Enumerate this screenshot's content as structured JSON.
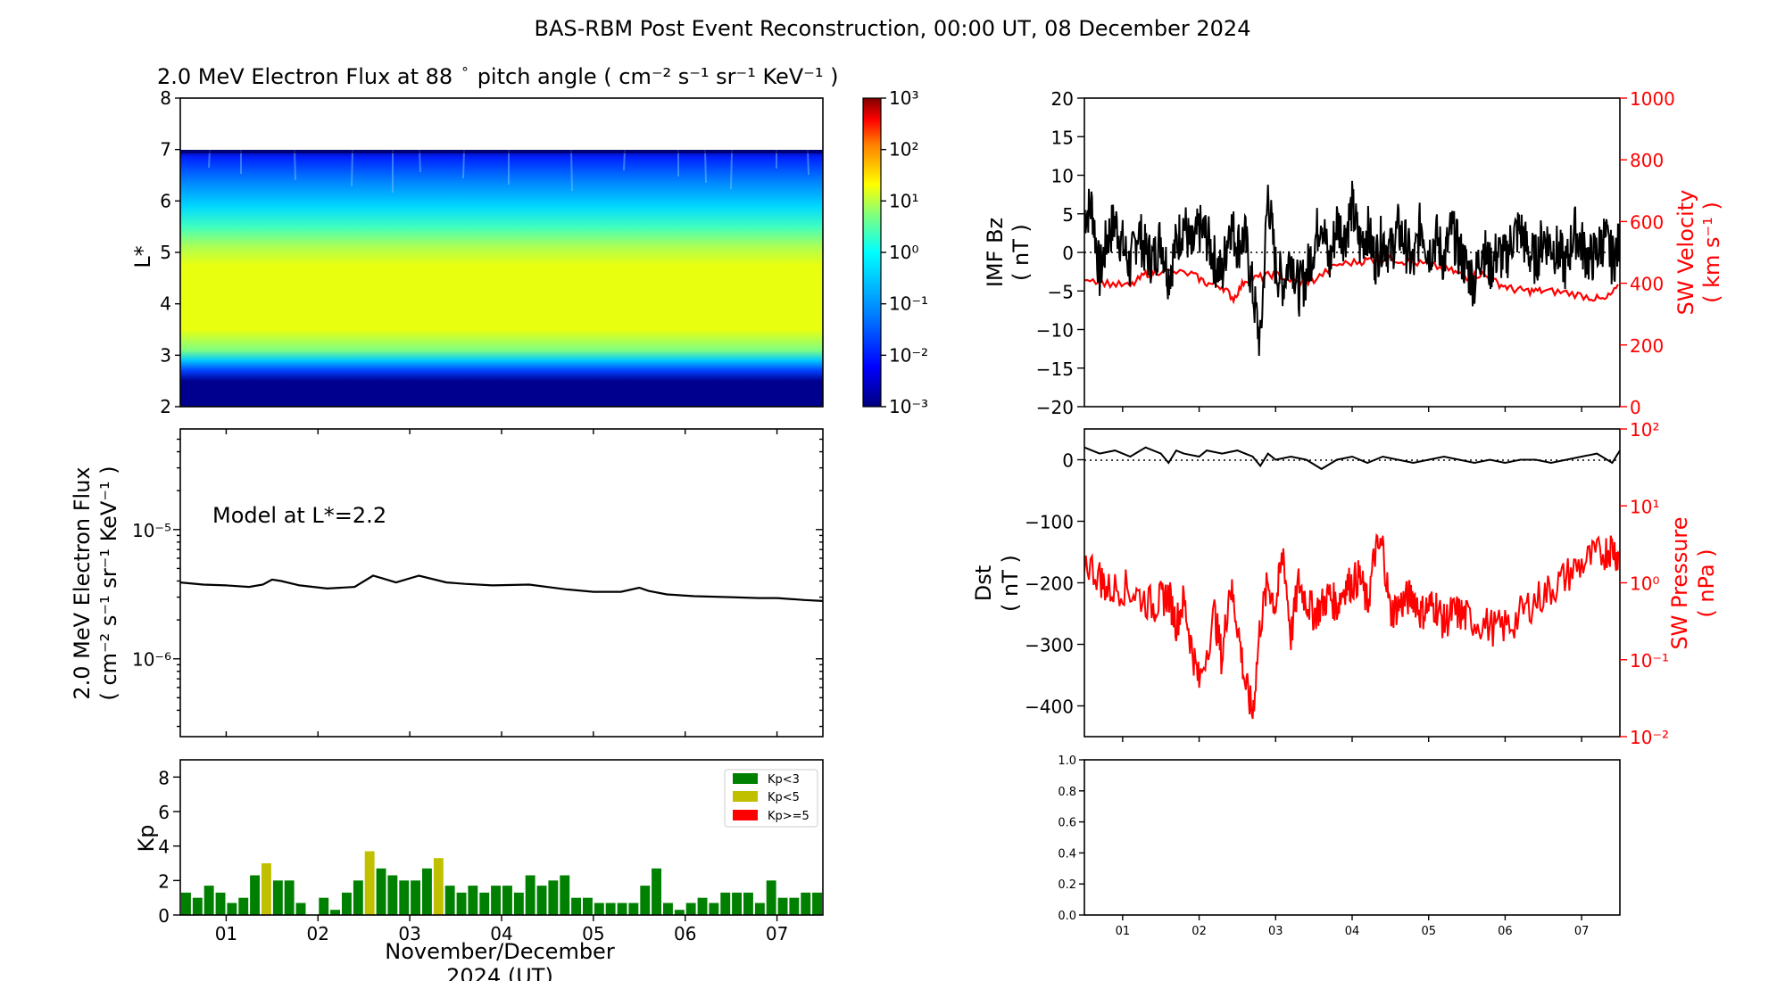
{
  "figure_title": "BAS-RBM Post Event Reconstruction, 00:00 UT, 08 December 2024",
  "colors": {
    "flux_line": "#000000",
    "sw_axis": "#ff0000",
    "kp_low": "#008000",
    "kp_mid": "#c0c000",
    "kp_high": "#ff0000"
  },
  "chart_data": [
    {
      "id": "flux_map",
      "type": "heatmap",
      "title": "2.0 MeV Electron Flux at 88",
      "title_deg": "°",
      "title_units": "pitch angle ( cm⁻² s⁻¹ sr⁻¹ KeV⁻¹ )",
      "ylabel": "L*",
      "ylim": [
        2,
        8
      ],
      "yticks": [
        "2",
        "3",
        "4",
        "5",
        "6",
        "7",
        "8"
      ],
      "note": "Flux peaks (~10^0.5) between L*≈3.5 and 5, drops sharply below L*≈3.1 and above L*=7 no data",
      "colorbar": {
        "scale": "log",
        "range": [
          0.001,
          1000
        ],
        "tick_labels": [
          "10⁻³",
          "10⁻²",
          "10⁻¹",
          "10⁰",
          "10¹",
          "10²",
          "10³"
        ]
      }
    },
    {
      "id": "flux_line",
      "type": "line",
      "annotation": "Model at L*=2.2",
      "ylabel_1": "2.0 MeV Electron Flux",
      "ylabel_2": "( cm⁻² s⁻¹ sr⁻¹ KeV⁻¹ )",
      "yscale": "log",
      "ylim": [
        2.5e-07,
        6e-05
      ],
      "ytick_labels": [
        "10⁻⁵",
        "10⁻⁶"
      ],
      "x_days": [
        0,
        0.25,
        0.5,
        0.75,
        0.9,
        1.0,
        1.1,
        1.3,
        1.6,
        1.9,
        2.1,
        2.2,
        2.35,
        2.6,
        2.9,
        3.1,
        3.4,
        3.8,
        4.2,
        4.5,
        4.8,
        5.0,
        5.1,
        5.3,
        5.6,
        6.0,
        6.3,
        6.5,
        6.8,
        7.0
      ],
      "values": [
        3.9e-06,
        3.75e-06,
        3.7e-06,
        3.6e-06,
        3.75e-06,
        4.1e-06,
        4e-06,
        3.7e-06,
        3.5e-06,
        3.6e-06,
        4.4e-06,
        4.2e-06,
        3.9e-06,
        4.4e-06,
        3.9e-06,
        3.8e-06,
        3.7e-06,
        3.75e-06,
        3.45e-06,
        3.3e-06,
        3.3e-06,
        3.55e-06,
        3.35e-06,
        3.15e-06,
        3.05e-06,
        3e-06,
        2.95e-06,
        2.95e-06,
        2.85e-06,
        2.8e-06
      ]
    },
    {
      "id": "kp",
      "type": "bar",
      "ylabel": "Kp",
      "ylim": [
        0,
        9
      ],
      "yticks": [
        "0",
        "2",
        "4",
        "6",
        "8"
      ],
      "xlabel_1": "November/December",
      "xlabel_2": "2024 (UT)",
      "xtick_labels": [
        "01",
        "02",
        "03",
        "04",
        "05",
        "06",
        "07"
      ],
      "legend": [
        "Kp<3",
        "Kp<5",
        "Kp>=5"
      ],
      "legend_position": "top-right",
      "values": [
        1.3,
        1.0,
        1.7,
        1.3,
        0.7,
        1.0,
        2.3,
        3.0,
        2.0,
        2.0,
        0.7,
        0,
        1.0,
        0.3,
        1.3,
        2.0,
        3.7,
        2.7,
        2.3,
        2.0,
        2.0,
        2.7,
        3.3,
        1.7,
        1.3,
        1.7,
        1.3,
        1.7,
        1.7,
        1.3,
        2.3,
        1.7,
        2.0,
        2.3,
        1.0,
        1.0,
        0.7,
        0.7,
        0.7,
        0.7,
        1.7,
        2.7,
        0.7,
        0.3,
        0.7,
        1.0,
        0.7,
        1.3,
        1.3,
        1.3,
        0.7,
        2.0,
        1.0,
        1.0,
        1.3,
        1.3
      ]
    },
    {
      "id": "imf_sw",
      "type": "line",
      "ylabel_left_1": "IMF Bz",
      "ylabel_left_2": "( nT )",
      "ylim_left": [
        -20,
        20
      ],
      "yticks_left": [
        "20",
        "15",
        "10",
        "5",
        "0",
        "−5",
        "−10",
        "−15",
        "−20"
      ],
      "ylabel_right_1": "SW Velocity",
      "ylabel_right_2": "( km s⁻¹ )",
      "ylim_right": [
        0,
        1000
      ],
      "yticks_right": [
        "1000",
        "800",
        "600",
        "400",
        "200",
        "0"
      ],
      "bz_x": [
        0,
        0.1,
        0.2,
        0.3,
        0.4,
        0.5,
        0.6,
        0.7,
        0.8,
        0.9,
        1.0,
        1.1,
        1.2,
        1.3,
        1.4,
        1.5,
        1.6,
        1.7,
        1.8,
        1.9,
        2.0,
        2.1,
        2.2,
        2.3,
        2.4,
        2.5,
        2.6,
        2.7,
        2.8,
        2.9,
        3.0,
        3.1,
        3.2,
        3.3,
        3.4,
        3.5,
        3.6,
        3.7,
        3.8,
        3.9,
        4.0,
        4.1,
        4.2,
        4.3,
        4.4,
        4.5,
        4.6,
        4.7,
        4.8,
        4.9,
        5.0,
        5.1,
        5.2,
        5.3,
        5.4,
        5.5,
        5.6,
        5.7,
        5.8,
        5.9,
        6.0,
        6.1,
        6.2,
        6.3,
        6.4,
        6.5,
        6.6,
        6.7,
        6.8,
        6.9,
        7.0
      ],
      "bz_values": [
        5,
        6,
        -3,
        2,
        4,
        1,
        -2,
        3,
        0,
        -1,
        2,
        -3,
        1,
        4,
        0,
        3,
        2,
        -1,
        -3,
        4,
        1,
        2,
        -5,
        -12,
        8,
        -2,
        -4,
        0,
        -5,
        -3,
        1,
        5,
        -2,
        4,
        2,
        6,
        1,
        3,
        -1,
        2,
        0,
        3,
        1,
        -2,
        4,
        0,
        2,
        -1,
        3,
        0,
        -2,
        -4,
        1,
        -2,
        0,
        -1,
        2,
        3,
        0,
        -1,
        2,
        1,
        0,
        -2,
        3,
        1,
        -1,
        0,
        2,
        -1,
        1
      ],
      "v_x": [
        0,
        0.3,
        0.6,
        0.8,
        1.0,
        1.4,
        1.6,
        1.8,
        1.95,
        2.1,
        2.3,
        2.5,
        2.8,
        3.0,
        3.3,
        3.6,
        3.8,
        4.0,
        4.2,
        4.5,
        4.8,
        5.0,
        5.2,
        5.4,
        5.6,
        5.8,
        6.0,
        6.3,
        6.6,
        6.8,
        7.0
      ],
      "v_values": [
        420,
        400,
        390,
        430,
        440,
        430,
        400,
        390,
        350,
        410,
        420,
        430,
        400,
        410,
        460,
        470,
        480,
        480,
        470,
        460,
        440,
        420,
        430,
        400,
        380,
        375,
        375,
        370,
        355,
        345,
        390
      ]
    },
    {
      "id": "dst_swp",
      "type": "line",
      "ylabel_left_1": "Dst",
      "ylabel_left_2": "( nT )",
      "ylim_left": [
        -450,
        50
      ],
      "yticks_left": [
        "0",
        "−100",
        "−200",
        "−300",
        "−400"
      ],
      "ylabel_right_1": "SW Pressure",
      "ylabel_right_2": "( nPa )",
      "yscale_right": "log",
      "ylim_right": [
        0.01,
        100
      ],
      "ytick_labels_right": [
        "10²",
        "10¹",
        "10⁰",
        "10⁻¹",
        "10⁻²"
      ],
      "dst_x": [
        0,
        0.2,
        0.4,
        0.6,
        0.8,
        1.0,
        1.1,
        1.2,
        1.3,
        1.5,
        1.6,
        1.8,
        2.0,
        2.2,
        2.3,
        2.4,
        2.5,
        2.7,
        2.9,
        3.1,
        3.3,
        3.5,
        3.7,
        3.9,
        4.1,
        4.3,
        4.5,
        4.7,
        4.9,
        5.1,
        5.3,
        5.5,
        5.7,
        5.9,
        6.1,
        6.3,
        6.5,
        6.7,
        6.9,
        7.0
      ],
      "dst_values": [
        20,
        10,
        15,
        5,
        20,
        10,
        -5,
        15,
        10,
        5,
        15,
        10,
        15,
        5,
        -10,
        10,
        0,
        5,
        0,
        -15,
        0,
        5,
        -5,
        5,
        0,
        -5,
        0,
        5,
        0,
        -5,
        0,
        -5,
        0,
        0,
        -5,
        0,
        5,
        10,
        -5,
        15
      ],
      "p_x": [
        0,
        0.2,
        0.3,
        0.5,
        0.7,
        0.9,
        1.0,
        1.1,
        1.2,
        1.3,
        1.4,
        1.5,
        1.7,
        1.8,
        1.9,
        2.0,
        2.1,
        2.2,
        2.3,
        2.4,
        2.5,
        2.6,
        2.7,
        2.8,
        2.9,
        3.0,
        3.1,
        3.2,
        3.3,
        3.4,
        3.5,
        3.6,
        3.7,
        3.8,
        3.9,
        4.0,
        4.1,
        4.2,
        4.3,
        4.4,
        4.5,
        4.6,
        4.7,
        4.8,
        4.9,
        5.0,
        5.2,
        5.4,
        5.6,
        5.8,
        6.0,
        6.2,
        6.4,
        6.6,
        6.8,
        6.9,
        7.0
      ],
      "p_values": [
        2.0,
        1.2,
        0.8,
        0.9,
        0.7,
        0.5,
        0.6,
        0.7,
        0.3,
        0.6,
        0.15,
        0.05,
        0.4,
        0.1,
        1.0,
        0.3,
        0.05,
        0.02,
        0.3,
        1.0,
        0.5,
        2.5,
        0.2,
        1.0,
        0.6,
        0.4,
        0.5,
        0.7,
        0.5,
        0.9,
        1.0,
        1.2,
        0.5,
        2.5,
        3.0,
        0.4,
        0.5,
        0.6,
        0.7,
        0.4,
        0.5,
        0.5,
        0.3,
        0.4,
        0.4,
        0.35,
        0.3,
        0.25,
        0.3,
        0.5,
        0.7,
        1.0,
        1.5,
        2.0,
        2.5,
        3.0,
        2.0
      ]
    },
    {
      "id": "empty_panel",
      "type": "line",
      "ylim": [
        0,
        1
      ],
      "yticks": [
        "0.0",
        "0.2",
        "0.4",
        "0.6",
        "0.8",
        "1.0"
      ],
      "xtick_labels": [
        "01",
        "02",
        "03",
        "04",
        "05",
        "06",
        "07"
      ]
    }
  ]
}
